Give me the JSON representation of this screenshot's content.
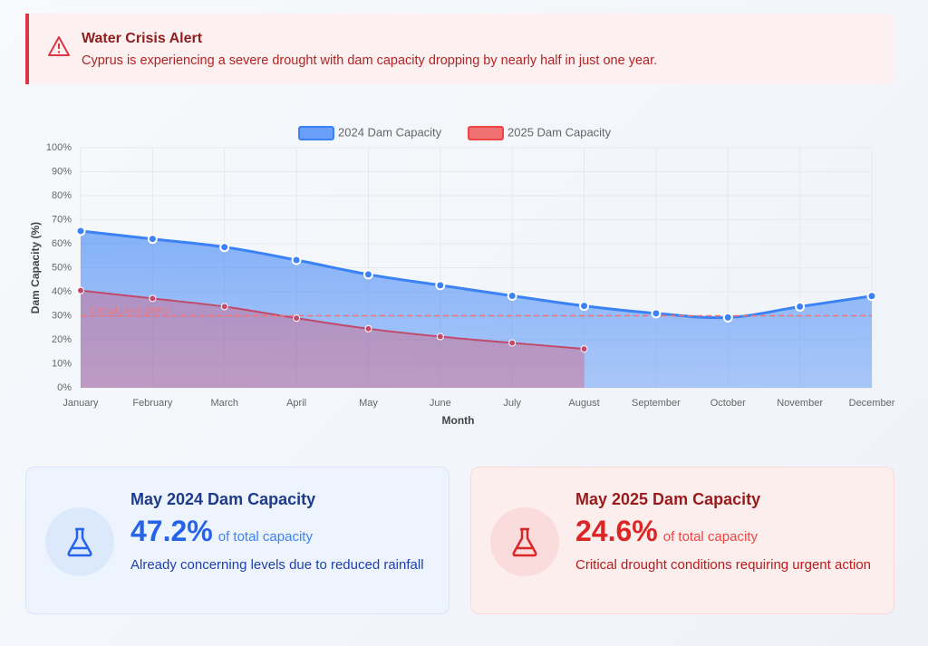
{
  "alert": {
    "title": "Water Crisis Alert",
    "text": "Cyprus is experiencing a severe drought with dam capacity dropping by nearly half in just one year."
  },
  "chart_data": {
    "type": "line",
    "categories": [
      "January",
      "February",
      "March",
      "April",
      "May",
      "June",
      "July",
      "August",
      "September",
      "October",
      "November",
      "December"
    ],
    "series": [
      {
        "name": "2024 Dam Capacity",
        "color": "#3b82f6",
        "values": [
          65.3,
          62,
          58.6,
          53.2,
          47.2,
          42.7,
          38.3,
          34.1,
          31,
          29.3,
          33.8,
          38.2
        ]
      },
      {
        "name": "2025 Dam Capacity",
        "color": "#ef4444",
        "values": [
          40.5,
          37.2,
          33.8,
          29,
          24.6,
          21.3,
          18.7,
          16.2,
          null,
          null,
          null,
          null
        ]
      }
    ],
    "ylim": [
      0,
      100
    ],
    "yticks": [
      {
        "value": 0,
        "label": "0%"
      },
      {
        "value": 10,
        "label": "10%"
      },
      {
        "value": 20,
        "label": "20%"
      },
      {
        "value": 30,
        "label": "30%"
      },
      {
        "value": 40,
        "label": "40%"
      },
      {
        "value": 50,
        "label": "50%"
      },
      {
        "value": 60,
        "label": "60%"
      },
      {
        "value": 70,
        "label": "70%"
      },
      {
        "value": 80,
        "label": "80%"
      },
      {
        "value": 90,
        "label": "90%"
      },
      {
        "value": 100,
        "label": "100%"
      }
    ],
    "ylabel": "Dam Capacity (%)",
    "xlabel": "Month",
    "grid": true,
    "legend": "top",
    "threshold": {
      "value": 30,
      "label": "Critical Level (30%)",
      "color": "#f87171"
    }
  },
  "cards": [
    {
      "title": "May 2024 Dam Capacity",
      "value": "47.2%",
      "unit": "of total capacity",
      "text": "Already concerning levels due to reduced rainfall"
    },
    {
      "title": "May 2025 Dam Capacity",
      "value": "24.6%",
      "unit": "of total capacity",
      "text": "Critical drought conditions requiring urgent action"
    }
  ]
}
